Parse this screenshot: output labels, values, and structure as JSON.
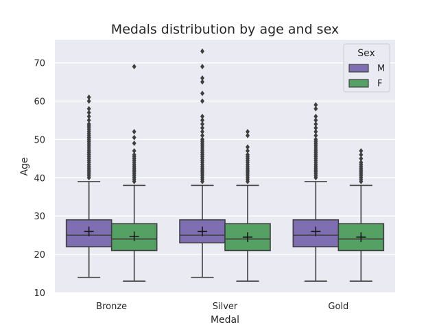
{
  "chart_data": {
    "type": "boxplot",
    "title": "Medals distribution by age and sex",
    "xlabel": "Medal",
    "ylabel": "Age",
    "categories": [
      "Bronze",
      "Silver",
      "Gold"
    ],
    "ylim": [
      10,
      76
    ],
    "yticks": [
      10,
      20,
      30,
      40,
      50,
      60,
      70
    ],
    "grid": true,
    "legend": {
      "title": "Sex",
      "placement": "top-right"
    },
    "series": [
      {
        "name": "M",
        "color": "#7f6fb2",
        "boxes": [
          {
            "category": "Bronze",
            "whisker_low": 14,
            "q1": 22,
            "median": 25,
            "q3": 29,
            "whisker_high": 39,
            "mean": 26,
            "outliers": [
              40,
              40.5,
              41,
              41.5,
              42,
              42.5,
              43,
              43.5,
              44,
              44.5,
              45,
              45.5,
              46,
              46.5,
              47,
              47.5,
              48,
              48.5,
              49,
              49.5,
              50,
              50.5,
              51,
              51.5,
              52,
              52.5,
              53,
              53.5,
              54,
              55,
              56,
              57,
              58,
              60,
              61
            ]
          },
          {
            "category": "Silver",
            "whisker_low": 14,
            "q1": 23,
            "median": 25,
            "q3": 29,
            "whisker_high": 38,
            "mean": 26,
            "outliers": [
              39,
              39.5,
              40,
              40.5,
              41,
              41.5,
              42,
              42.5,
              43,
              43.5,
              44,
              44.5,
              45,
              45.5,
              46,
              46.5,
              47,
              47.5,
              48,
              48.5,
              49,
              49.5,
              50,
              51,
              52,
              53,
              54,
              55,
              56,
              60,
              62,
              65,
              66,
              69,
              73
            ]
          },
          {
            "category": "Gold",
            "whisker_low": 13,
            "q1": 22,
            "median": 25,
            "q3": 29,
            "whisker_high": 39,
            "mean": 26,
            "outliers": [
              40,
              40.5,
              41,
              41.5,
              42,
              42.5,
              43,
              43.5,
              44,
              44.5,
              45,
              45.5,
              46,
              46.5,
              47,
              47.5,
              48,
              48.5,
              49,
              49.5,
              50,
              51,
              52,
              53,
              54,
              55,
              56,
              58,
              59
            ]
          }
        ]
      },
      {
        "name": "F",
        "color": "#55a063",
        "boxes": [
          {
            "category": "Bronze",
            "whisker_low": 13,
            "q1": 21,
            "median": 24,
            "q3": 28,
            "whisker_high": 38,
            "mean": 24.7,
            "outliers": [
              39,
              39.5,
              40,
              40.5,
              41,
              41.5,
              42,
              42.5,
              43,
              43.5,
              44,
              44.5,
              45,
              45.5,
              46,
              47,
              49,
              50.5,
              52,
              69
            ]
          },
          {
            "category": "Silver",
            "whisker_low": 13,
            "q1": 21,
            "median": 24,
            "q3": 28,
            "whisker_high": 38,
            "mean": 24.5,
            "outliers": [
              39,
              39.5,
              40,
              40.5,
              41,
              41.5,
              42,
              42.5,
              43,
              43.5,
              44,
              44.5,
              45,
              45.5,
              46,
              47,
              48,
              51,
              52
            ]
          },
          {
            "category": "Gold",
            "whisker_low": 13,
            "q1": 21,
            "median": 24,
            "q3": 28,
            "whisker_high": 38,
            "mean": 24.5,
            "outliers": [
              39,
              39.5,
              40,
              40.5,
              41,
              41.5,
              42,
              42.5,
              43,
              43.5,
              44,
              45,
              46,
              47
            ]
          }
        ]
      }
    ]
  }
}
